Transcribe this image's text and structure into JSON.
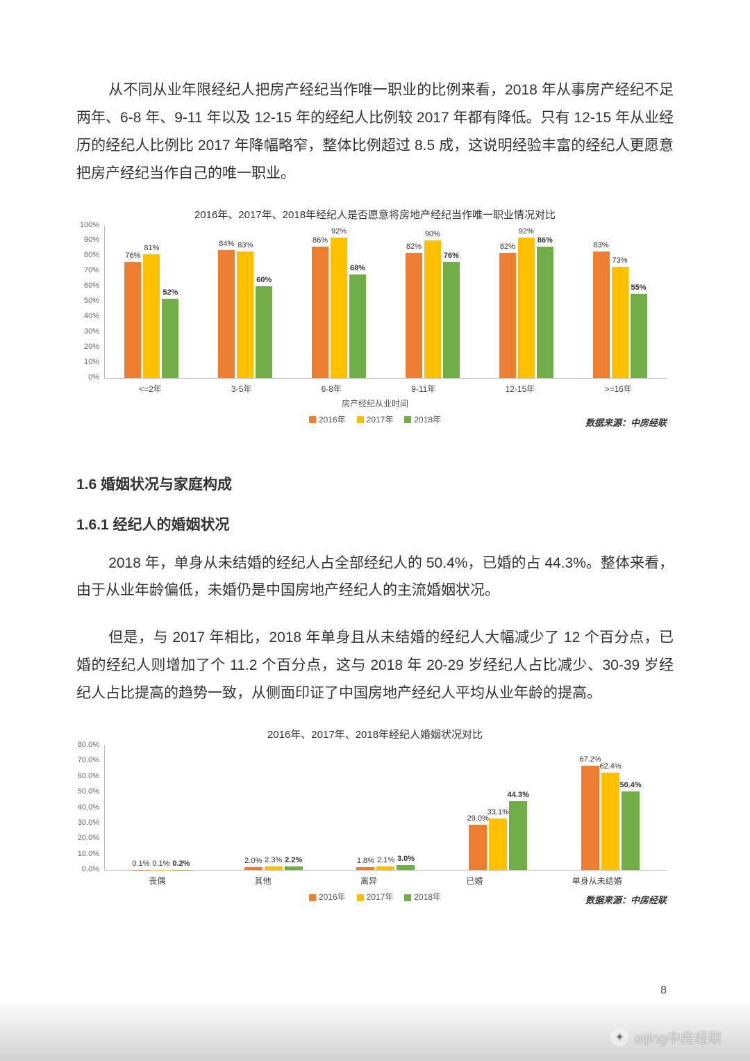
{
  "paragraphs": {
    "p1": "从不同从业年限经纪人把房产经纪当作唯一职业的比例来看，2018 年从事房产经纪不足两年、6-8 年、9-11 年以及 12-15 年的经纪人比例较 2017 年都有降低。只有 12-15 年从业经历的经纪人比例比 2017 年降幅略窄，整体比例超过 8.5 成，这说明经验丰富的经纪人更愿意把房产经纪当作自己的唯一职业。",
    "h1": "1.6 婚姻状况与家庭构成",
    "h2": "1.6.1 经纪人的婚姻状况",
    "p2": "2018 年，单身从未结婚的经纪人占全部经纪人的 50.4%，已婚的占 44.3%。整体来看，由于从业年龄偏低，未婚仍是中国房地产经纪人的主流婚姻状况。",
    "p3": "但是，与 2017 年相比，2018 年单身且从未结婚的经纪人大幅减少了 12 个百分点，已婚的经纪人则增加了个 11.2 个百分点，这与 2018 年 20-29 岁经纪人占比减少、30-39 岁经纪人占比提高的趋势一致，从侧面印证了中国房地产经纪人平均从业年龄的提高。"
  },
  "chart1": {
    "title": "2016年、2017年、2018年经纪人是否愿意将房地产经纪当作唯一职业情况对比",
    "x_axis_title": "房产经纪从业时间",
    "y_max": 100,
    "y_ticks": [
      "0%",
      "10%",
      "20%",
      "30%",
      "40%",
      "50%",
      "60%",
      "70%",
      "80%",
      "90%",
      "100%"
    ],
    "categories": [
      "<=2年",
      "3-5年",
      "6-8年",
      "9-11年",
      "12-15年",
      ">=16年"
    ],
    "series": [
      {
        "name": "2016年",
        "color": "#ed7d31",
        "values": [
          76,
          84,
          86,
          82,
          82,
          83
        ],
        "labels": [
          "76%",
          "84%",
          "86%",
          "82%",
          "82%",
          "83%"
        ]
      },
      {
        "name": "2017年",
        "color": "#ffc000",
        "values": [
          81,
          83,
          92,
          90,
          92,
          73
        ],
        "labels": [
          "81%",
          "83%",
          "92%",
          "90%",
          "92%",
          "73%"
        ]
      },
      {
        "name": "2018年",
        "color": "#70ad47",
        "values": [
          52,
          60,
          68,
          76,
          86,
          55
        ],
        "labels": [
          "52%",
          "60%",
          "68%",
          "76%",
          "86%",
          "55%"
        ],
        "bold": true
      }
    ],
    "source": "数据来源：中房经联"
  },
  "chart2": {
    "title": "2016年、2017年、2018年经纪人婚姻状况对比",
    "y_max": 80,
    "y_ticks": [
      "0.0%",
      "10.0%",
      "20.0%",
      "30.0%",
      "40.0%",
      "50.0%",
      "60.0%",
      "70.0%",
      "80.0%"
    ],
    "categories": [
      "丧偶",
      "其他",
      "离异",
      "已婚",
      "单身从未结婚"
    ],
    "series": [
      {
        "name": "2016年",
        "color": "#ed7d31",
        "values": [
          0.1,
          2.0,
          1.8,
          29.0,
          67.2
        ],
        "labels": [
          "0.1%",
          "2.0%",
          "1.8%",
          "29.0%",
          "67.2%"
        ]
      },
      {
        "name": "2017年",
        "color": "#ffc000",
        "values": [
          0.1,
          2.3,
          2.1,
          33.1,
          62.4
        ],
        "labels": [
          "0.1%",
          "2.3%",
          "2.1%",
          "33.1%",
          "62.4%"
        ]
      },
      {
        "name": "2018年",
        "color": "#70ad47",
        "values": [
          0.2,
          2.2,
          3.0,
          44.3,
          50.4
        ],
        "labels": [
          "0.2%",
          "2.2%",
          "3.0%",
          "44.3%",
          "50.4%"
        ],
        "bold": true
      }
    ],
    "source": "数据来源：中房经联"
  },
  "legend": {
    "items": [
      {
        "name": "2016年",
        "color": "#ed7d31"
      },
      {
        "name": "2017年",
        "color": "#ffc000"
      },
      {
        "name": "2018年",
        "color": "#70ad47"
      }
    ]
  },
  "page_number": "8",
  "watermark": "aijing中房经联"
}
